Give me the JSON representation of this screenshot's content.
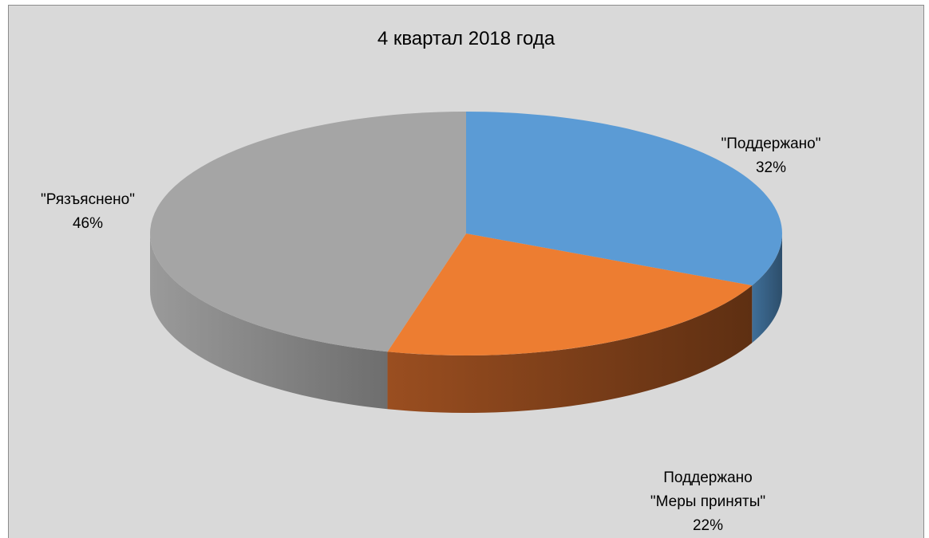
{
  "chart_data": {
    "type": "pie",
    "title": "4 квартал 2018 года",
    "slices": [
      {
        "label_lines": [
          "\"Поддержано\""
        ],
        "value": 32,
        "value_label": "32%",
        "color": "#5b9bd5",
        "side_color_dark": "#2d4e6b",
        "side_color_light": "#3f6f99"
      },
      {
        "label_lines": [
          "Поддержано",
          "\"Меры приняты\""
        ],
        "value": 22,
        "value_label": "22%",
        "color": "#ed7d31",
        "side_color_dark": "#5e2f12",
        "side_color_light": "#9a4e20"
      },
      {
        "label_lines": [
          "\"Рязъяснено\""
        ],
        "value": 46,
        "value_label": "46%",
        "color": "#a5a5a5",
        "side_color_dark": "#6e6e6e",
        "side_color_light": "#9a9a9a"
      }
    ],
    "style": "3d",
    "legend": "none"
  }
}
